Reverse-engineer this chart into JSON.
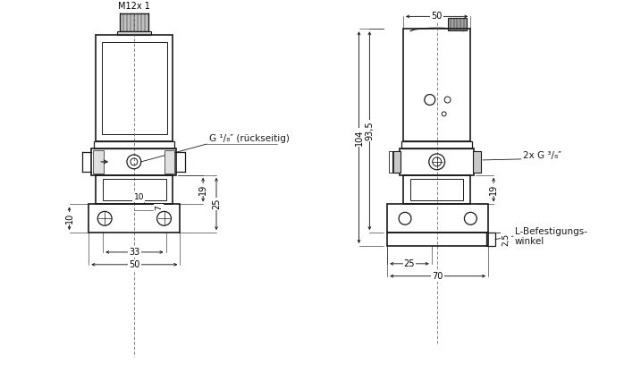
{
  "bg_color": "#ffffff",
  "lc": "#1a1a1a",
  "gray_dark": "#888888",
  "gray_med": "#b0b0b0",
  "gray_light": "#d8d8d8",
  "figure_width": 6.98,
  "figure_height": 4.26,
  "dpi": 100,
  "labels": {
    "m12": "M12x 1",
    "g18": "G ¹/₈″ (rückseitig)",
    "g38": "2x G ³/₈″",
    "lbefest1": "L-Befestigungs-",
    "lbefest2": "winkel",
    "d50t": "50",
    "d33": "33",
    "d50b": "50",
    "d10": "10",
    "d7": "7",
    "d19l": "19",
    "d25": "25",
    "d10b": "10",
    "d104": "104",
    "d935": "93,5",
    "d19r": "19",
    "d25r": "25",
    "d70": "70",
    "d2p5": "2,5"
  }
}
